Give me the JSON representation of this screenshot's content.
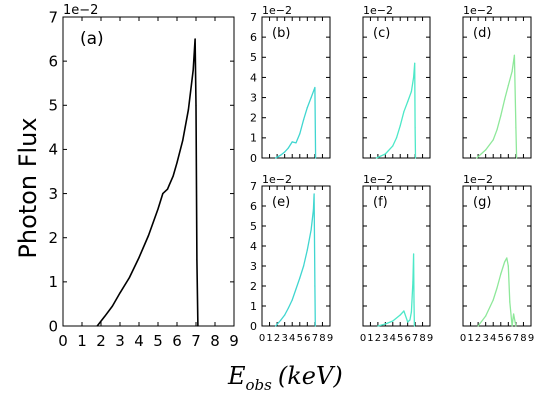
{
  "figure": {
    "ylabel": "Photon Flux",
    "xlabel_main": "E",
    "xlabel_sub": "obs",
    "xlabel_unit": "(keV)"
  },
  "chart_data": [
    {
      "panel": "(a)",
      "type": "line",
      "color": "#000000",
      "multiplier": "1e−2",
      "xlim": [
        0,
        9
      ],
      "ylim": [
        0,
        7
      ],
      "xticks": [
        "0",
        "1",
        "2",
        "3",
        "4",
        "5",
        "6",
        "7",
        "8",
        "9"
      ],
      "yticks": [
        "0",
        "1",
        "2",
        "3",
        "4",
        "5",
        "6",
        "7"
      ],
      "x": [
        1.8,
        2.2,
        2.6,
        3.0,
        3.5,
        4.0,
        4.5,
        5.0,
        5.25,
        5.5,
        5.6,
        5.8,
        6.0,
        6.3,
        6.6,
        6.85,
        6.95,
        7.0,
        7.05,
        7.1
      ],
      "y": [
        0.0,
        0.22,
        0.45,
        0.75,
        1.1,
        1.55,
        2.05,
        2.65,
        3.0,
        3.1,
        3.2,
        3.4,
        3.7,
        4.2,
        4.9,
        5.8,
        6.5,
        5.0,
        1.5,
        0.0
      ]
    },
    {
      "panel": "(b)",
      "type": "line",
      "color": "#40d6d0",
      "multiplier": "1e−2",
      "xlim": [
        0,
        9
      ],
      "ylim": [
        0,
        7
      ],
      "yticks": [
        "0",
        "1",
        "2",
        "3",
        "4",
        "5",
        "6",
        "7"
      ],
      "xticks": [],
      "x": [
        1.8,
        2.5,
        3.0,
        3.5,
        4.0,
        4.5,
        5.0,
        5.5,
        6.0,
        6.5,
        7.0,
        7.1
      ],
      "y": [
        0.0,
        0.15,
        0.3,
        0.5,
        0.8,
        0.75,
        1.2,
        1.9,
        2.5,
        3.0,
        3.5,
        0.0
      ]
    },
    {
      "panel": "(c)",
      "type": "line",
      "color": "#4de8c8",
      "multiplier": "1e−2",
      "xlim": [
        0,
        9
      ],
      "ylim": [
        0,
        7
      ],
      "yticks": [],
      "xticks": [],
      "x": [
        1.8,
        3.0,
        4.0,
        4.5,
        5.0,
        5.5,
        6.0,
        6.5,
        6.8,
        6.95,
        7.0,
        7.05
      ],
      "y": [
        0.0,
        0.2,
        0.6,
        1.0,
        1.6,
        2.3,
        2.8,
        3.3,
        4.0,
        4.7,
        1.5,
        0.0
      ]
    },
    {
      "panel": "(d)",
      "type": "line",
      "color": "#8ee89a",
      "multiplier": "1e−2",
      "xlim": [
        0,
        9
      ],
      "ylim": [
        0,
        7
      ],
      "yticks": [],
      "xticks": [],
      "x": [
        1.8,
        3.0,
        4.0,
        4.5,
        5.0,
        5.5,
        6.0,
        6.5,
        6.8,
        7.0,
        7.1
      ],
      "y": [
        0.0,
        0.4,
        0.9,
        1.4,
        2.1,
        2.9,
        3.6,
        4.3,
        5.1,
        1.5,
        0.0
      ]
    },
    {
      "panel": "(e)",
      "type": "line",
      "color": "#40d6d0",
      "multiplier": "1e−2",
      "xlim": [
        0,
        9
      ],
      "ylim": [
        0,
        7
      ],
      "yticks": [
        "0",
        "1",
        "2",
        "3",
        "4",
        "5",
        "6",
        "7"
      ],
      "xticks": [
        "0",
        "1",
        "2",
        "3",
        "4",
        "5",
        "6",
        "7",
        "8",
        "9"
      ],
      "x": [
        1.8,
        2.5,
        3.0,
        3.5,
        4.0,
        4.5,
        5.0,
        5.5,
        6.0,
        6.5,
        6.8,
        6.9,
        7.0,
        7.05
      ],
      "y": [
        0.0,
        0.3,
        0.55,
        0.9,
        1.3,
        1.85,
        2.4,
        3.0,
        3.8,
        4.8,
        5.8,
        6.6,
        2.0,
        0.0
      ]
    },
    {
      "panel": "(f)",
      "type": "line",
      "color": "#4de8c8",
      "multiplier": "1e−2",
      "xlim": [
        0,
        9
      ],
      "ylim": [
        0,
        7
      ],
      "yticks": [],
      "xticks": [
        "0",
        "1",
        "2",
        "3",
        "4",
        "5",
        "6",
        "7",
        "8",
        "9"
      ],
      "x": [
        2.0,
        3.0,
        4.0,
        5.0,
        5.5,
        6.0,
        6.3,
        6.5,
        6.7,
        6.8,
        6.85,
        6.9
      ],
      "y": [
        0.0,
        0.1,
        0.25,
        0.55,
        0.75,
        0.2,
        0.3,
        0.7,
        2.2,
        3.6,
        1.2,
        0.0
      ]
    },
    {
      "panel": "(g)",
      "type": "line",
      "color": "#8ee89a",
      "multiplier": "1e−2",
      "xlim": [
        0,
        9
      ],
      "ylim": [
        0,
        7
      ],
      "yticks": [],
      "xticks": [
        "0",
        "1",
        "2",
        "3",
        "4",
        "5",
        "6",
        "7",
        "8",
        "9"
      ],
      "x": [
        2.0,
        3.0,
        4.0,
        4.5,
        5.0,
        5.5,
        5.8,
        6.0,
        6.2,
        6.5,
        6.7,
        6.9,
        7.0
      ],
      "y": [
        0.0,
        0.5,
        1.3,
        1.9,
        2.6,
        3.2,
        3.4,
        3.0,
        1.2,
        0.0,
        0.6,
        0.2,
        0.0
      ]
    }
  ]
}
